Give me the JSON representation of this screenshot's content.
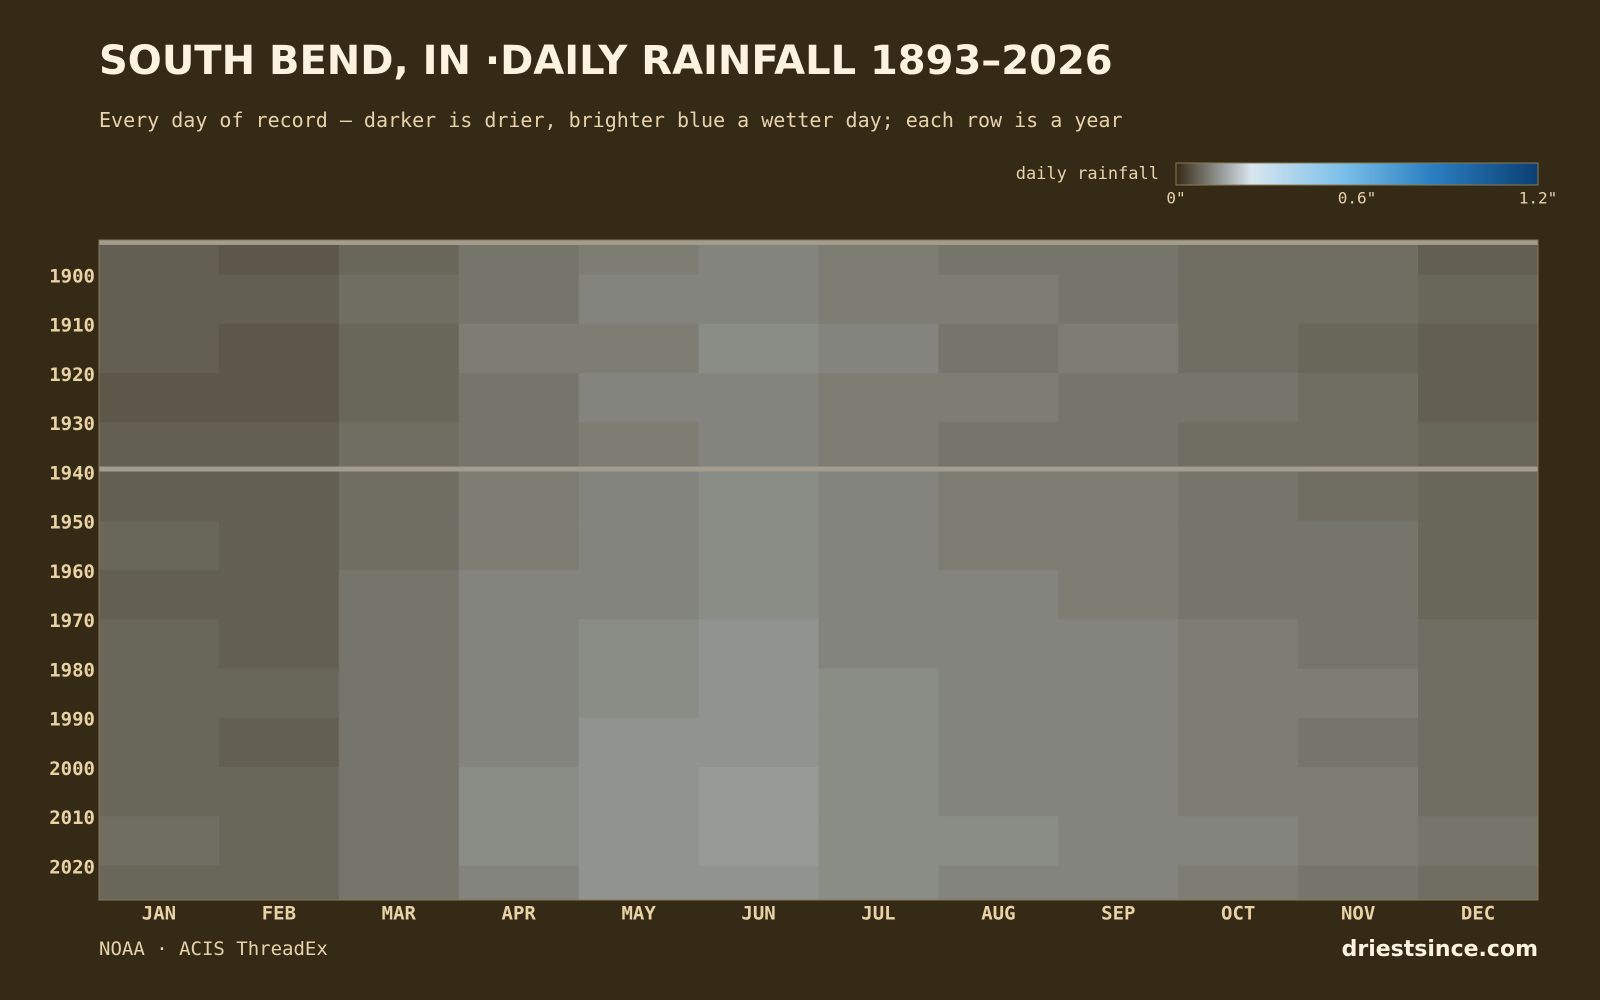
{
  "chart_data": {
    "type": "heatmap",
    "title": "SOUTH BEND, IN ·DAILY RAINFALL 1893–2026",
    "subtitle": "Every day of record — darker is drier, brighter blue a wetter day; each row is a year",
    "legend_title": "daily rainfall",
    "color_range": [
      0,
      1.2
    ],
    "colorscale": [
      {
        "value": 0,
        "color": "#352a15"
      },
      {
        "value": 0.25,
        "color": "#d8e6ee"
      },
      {
        "value": 0.55,
        "color": "#7cc0ea"
      },
      {
        "value": 0.85,
        "color": "#2a7fc0"
      },
      {
        "value": 1.2,
        "color": "#0b3f73"
      }
    ],
    "legend_ticks": [
      {
        "value": 0,
        "label": "0\""
      },
      {
        "value": 0.6,
        "label": "0.6\""
      },
      {
        "value": 1.2,
        "label": "1.2\""
      }
    ],
    "missing_color": "#a39d8f",
    "categories": [
      "JAN",
      "FEB",
      "MAR",
      "APR",
      "MAY",
      "JUN",
      "JUL",
      "AUG",
      "SEP",
      "OCT",
      "NOV",
      "DEC"
    ],
    "y_edges": [
      1893,
      1900,
      1910,
      1920,
      1930,
      1940,
      1950,
      1960,
      1970,
      1980,
      1990,
      2000,
      2010,
      2020,
      2027
    ],
    "values": [
      [
        0.07,
        0.06,
        0.08,
        0.1,
        0.11,
        0.12,
        0.11,
        0.1,
        0.1,
        0.09,
        0.09,
        0.07
      ],
      [
        0.07,
        0.07,
        0.09,
        0.1,
        0.12,
        0.12,
        0.11,
        0.11,
        0.1,
        0.09,
        0.09,
        0.08
      ],
      [
        0.07,
        0.06,
        0.08,
        0.11,
        0.11,
        0.13,
        0.12,
        0.1,
        0.11,
        0.09,
        0.08,
        0.07
      ],
      [
        0.06,
        0.06,
        0.08,
        0.1,
        0.12,
        0.12,
        0.11,
        0.11,
        0.1,
        0.1,
        0.09,
        0.07
      ],
      [
        0.07,
        0.07,
        0.09,
        0.1,
        0.11,
        0.12,
        0.11,
        0.1,
        0.1,
        0.09,
        0.09,
        0.08
      ],
      [
        0.07,
        0.07,
        0.09,
        0.11,
        0.12,
        0.13,
        0.12,
        0.11,
        0.11,
        0.1,
        0.09,
        0.08
      ],
      [
        0.08,
        0.07,
        0.09,
        0.11,
        0.12,
        0.13,
        0.12,
        0.11,
        0.11,
        0.1,
        0.1,
        0.08
      ],
      [
        0.07,
        0.07,
        0.1,
        0.12,
        0.12,
        0.13,
        0.12,
        0.12,
        0.11,
        0.1,
        0.1,
        0.08
      ],
      [
        0.08,
        0.07,
        0.1,
        0.12,
        0.13,
        0.14,
        0.12,
        0.12,
        0.12,
        0.11,
        0.1,
        0.09
      ],
      [
        0.08,
        0.08,
        0.1,
        0.12,
        0.13,
        0.14,
        0.13,
        0.12,
        0.12,
        0.11,
        0.11,
        0.09
      ],
      [
        0.08,
        0.07,
        0.1,
        0.12,
        0.14,
        0.14,
        0.13,
        0.12,
        0.12,
        0.11,
        0.1,
        0.09
      ],
      [
        0.08,
        0.08,
        0.1,
        0.13,
        0.14,
        0.15,
        0.13,
        0.12,
        0.12,
        0.11,
        0.11,
        0.09
      ],
      [
        0.09,
        0.08,
        0.1,
        0.13,
        0.14,
        0.15,
        0.13,
        0.13,
        0.12,
        0.12,
        0.11,
        0.1
      ],
      [
        0.08,
        0.08,
        0.1,
        0.12,
        0.14,
        0.14,
        0.13,
        0.12,
        0.12,
        0.11,
        0.1,
        0.09
      ]
    ],
    "missing_years": [
      1893,
      1939
    ],
    "ylim": [
      1893,
      2027
    ],
    "yticks": [
      1900,
      1910,
      1920,
      1930,
      1940,
      1950,
      1960,
      1970,
      1980,
      1990,
      2000,
      2010,
      2020
    ],
    "source": "NOAA · ACIS ThreadEx",
    "brand": "driestsince.com"
  }
}
